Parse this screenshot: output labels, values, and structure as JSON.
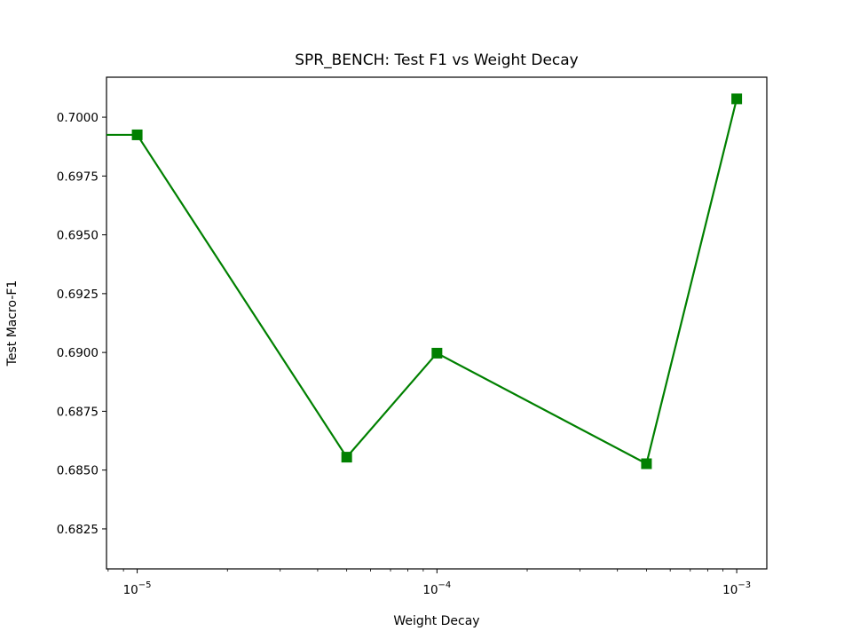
{
  "chart_data": {
    "type": "line",
    "title": "SPR_BENCH: Test F1 vs Weight Decay",
    "xlabel": "Weight Decay",
    "ylabel": "Test Macro-F1",
    "x_scale": "log",
    "x": [
      0,
      1e-05,
      5e-05,
      0.0001,
      0.0005,
      0.001
    ],
    "y": [
      0.69925,
      0.69925,
      0.68555,
      0.68997,
      0.68527,
      0.70078
    ],
    "zero_point_note": "",
    "xlim": [
      7.9e-06,
      0.00126
    ],
    "ylim": [
      0.6808,
      0.7017
    ],
    "x_ticks": [
      {
        "value": 1e-05,
        "mantissa": "10",
        "exponent": "−5"
      },
      {
        "value": 0.0001,
        "mantissa": "10",
        "exponent": "−4"
      },
      {
        "value": 0.001,
        "mantissa": "10",
        "exponent": "−3"
      }
    ],
    "y_ticks": [
      "0.6825",
      "0.6850",
      "0.6875",
      "0.6900",
      "0.6925",
      "0.6950",
      "0.6975",
      "0.7000"
    ],
    "series": [
      {
        "name": "",
        "color": "#008000",
        "marker": "square"
      }
    ],
    "grid": false,
    "legend": "none"
  }
}
